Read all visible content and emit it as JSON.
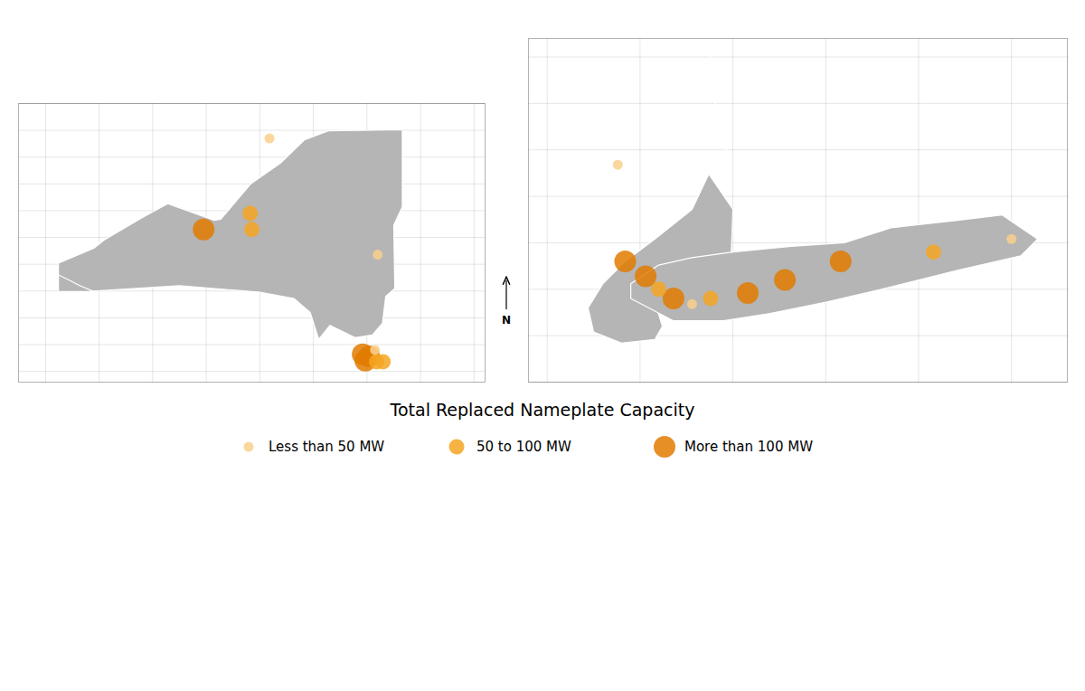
{
  "chart_data": {
    "type": "scatter",
    "title": "Total Replaced Nameplate Capacity",
    "legend": "bottom",
    "annotations": [
      "N"
    ],
    "series": [
      {
        "name": "Less than 50 MW",
        "color": "#f9d08b"
      },
      {
        "name": "50 to 100 MW",
        "color": "#f5a623"
      },
      {
        "name": "More than 100 MW",
        "color": "#e07b00"
      }
    ],
    "map_color": "#b5b5b5",
    "map_edge_color": "#ffffff",
    "panels": [
      {
        "xlim": [
          -80.5,
          -71.8
        ],
        "ylim": [
          40.3,
          45.5
        ],
        "xticks": [
          -80,
          -79,
          -78,
          -77,
          -76,
          -75,
          -74,
          -73,
          -72
        ],
        "yticks": [
          40.5,
          41,
          41.5,
          42,
          42.5,
          43,
          43.5,
          44,
          44.5,
          45,
          45.5
        ],
        "grid": true,
        "tick_labels": false,
        "shapes": [
          [
            [
              -79.76,
              42.0
            ],
            [
              -79.76,
              42.52
            ],
            [
              -79.1,
              42.8
            ],
            [
              -78.91,
              42.95
            ],
            [
              -78.2,
              43.37
            ],
            [
              -77.72,
              43.63
            ],
            [
              -76.85,
              43.32
            ],
            [
              -76.73,
              43.34
            ],
            [
              -76.17,
              44.0
            ],
            [
              -75.6,
              44.4
            ],
            [
              -75.17,
              44.82
            ],
            [
              -74.72,
              44.99
            ],
            [
              -73.34,
              45.01
            ],
            [
              -73.34,
              43.57
            ],
            [
              -73.5,
              43.23
            ],
            [
              -73.48,
              42.05
            ],
            [
              -73.65,
              41.9
            ],
            [
              -73.71,
              41.4
            ],
            [
              -73.9,
              41.18
            ],
            [
              -74.22,
              41.13
            ],
            [
              -74.69,
              41.36
            ],
            [
              -74.9,
              41.1
            ],
            [
              -75.06,
              41.6
            ],
            [
              -75.36,
              41.86
            ],
            [
              -76.0,
              41.98
            ],
            [
              -77.5,
              42.1
            ],
            [
              -79.1,
              42.0
            ],
            [
              -79.76,
              42.0
            ]
          ],
          [
            [
              -79.76,
              41.99
            ],
            [
              -79.76,
              42.3
            ],
            [
              -79.55,
              42.2
            ],
            [
              -79.4,
              42.12
            ],
            [
              -79.1,
              41.99
            ],
            [
              -79.76,
              41.99
            ]
          ]
        ],
        "x": [
          -75.82,
          -76.18,
          -76.15,
          -77.05,
          -73.8,
          -73.85,
          -74.08,
          -73.96,
          -74.03,
          -73.82,
          -73.7
        ],
        "y": [
          44.85,
          43.45,
          43.15,
          43.15,
          42.68,
          40.9,
          40.82,
          40.78,
          40.7,
          40.68,
          40.68
        ],
        "point_series": [
          "Less than 50 MW",
          "50 to 100 MW",
          "50 to 100 MW",
          "More than 100 MW",
          "Less than 50 MW",
          "Less than 50 MW",
          "More than 100 MW",
          "More than 100 MW",
          "More than 100 MW",
          "50 to 100 MW",
          "50 to 100 MW"
        ]
      },
      {
        "xlim": [
          -74.6,
          -71.7
        ],
        "ylim": [
          40.25,
          42.1
        ],
        "xticks": [
          -74.5,
          -74,
          -73.5,
          -73,
          -72.5,
          -72
        ],
        "yticks": [
          40.25,
          40.5,
          40.75,
          41,
          41.25,
          41.5,
          41.75,
          42
        ],
        "grid": true,
        "tick_labels": false,
        "shapes": [
          [
            [
              -74.3,
              42.05
            ],
            [
              -73.62,
              42.05
            ],
            [
              -73.62,
              41.82
            ],
            [
              -73.52,
              41.52
            ],
            [
              -73.63,
              41.37
            ],
            [
              -73.72,
              41.18
            ],
            [
              -73.92,
              41.02
            ],
            [
              -74.08,
              40.9
            ],
            [
              -74.2,
              40.78
            ],
            [
              -74.28,
              40.65
            ],
            [
              -74.25,
              40.52
            ],
            [
              -74.1,
              40.46
            ],
            [
              -73.92,
              40.48
            ],
            [
              -73.88,
              40.55
            ],
            [
              -73.92,
              40.68
            ],
            [
              -73.78,
              40.75
            ],
            [
              -73.68,
              40.68
            ],
            [
              -73.52,
              40.65
            ],
            [
              -73.5,
              41.18
            ],
            [
              -73.63,
              41.37
            ],
            [
              -73.52,
              41.52
            ],
            [
              -73.62,
              41.82
            ],
            [
              -73.62,
              42.05
            ],
            [
              -74.3,
              42.05
            ]
          ],
          [
            [
              -74.05,
              40.7
            ],
            [
              -73.82,
              40.58
            ],
            [
              -73.55,
              40.58
            ],
            [
              -73.3,
              40.62
            ],
            [
              -73.0,
              40.68
            ],
            [
              -72.7,
              40.75
            ],
            [
              -72.3,
              40.85
            ],
            [
              -71.95,
              40.93
            ],
            [
              -71.86,
              41.02
            ],
            [
              -72.05,
              41.15
            ],
            [
              -72.3,
              41.12
            ],
            [
              -72.65,
              41.08
            ],
            [
              -72.9,
              41.0
            ],
            [
              -73.2,
              40.98
            ],
            [
              -73.5,
              40.95
            ],
            [
              -73.72,
              40.92
            ],
            [
              -73.9,
              40.88
            ],
            [
              -74.05,
              40.78
            ],
            [
              -74.05,
              40.7
            ]
          ]
        ],
        "x": [
          -74.12,
          -74.08,
          -73.97,
          -73.9,
          -73.82,
          -73.72,
          -73.62,
          -73.42,
          -73.22,
          -72.92,
          -72.42,
          -72.0
        ],
        "y": [
          41.42,
          40.9,
          40.82,
          40.75,
          40.7,
          40.67,
          40.7,
          40.73,
          40.8,
          40.9,
          40.95,
          41.02
        ],
        "point_series": [
          "Less than 50 MW",
          "More than 100 MW",
          "More than 100 MW",
          "50 to 100 MW",
          "More than 100 MW",
          "Less than 50 MW",
          "50 to 100 MW",
          "More than 100 MW",
          "More than 100 MW",
          "More than 100 MW",
          "50 to 100 MW",
          "Less than 50 MW"
        ]
      }
    ]
  }
}
